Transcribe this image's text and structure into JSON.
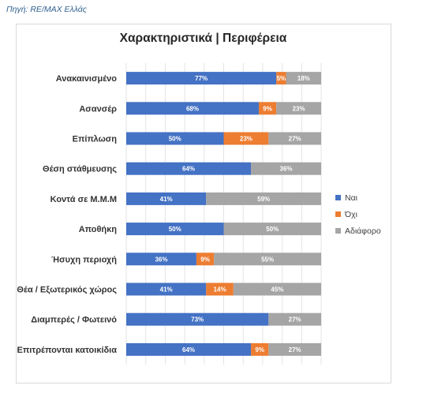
{
  "source_note": "Πηγή: RE/MAX Ελλάς",
  "chart_data": {
    "type": "bar",
    "orientation": "horizontal",
    "stacked": "percent",
    "title": "Χαρακτηριστικά | Περιφέρεια",
    "categories": [
      "Ανακαινισμένο",
      "Ασανσέρ",
      "Επίπλωση",
      "Θέση στάθμευσης",
      "Κοντά σε Μ.Μ.Μ",
      "Αποθήκη",
      "Ήσυχη περιοχή",
      "Θέα / Εξωτερικός χώρος",
      "Διαμπερές / Φωτεινό",
      "Επιτρέπονται κατοικίδια"
    ],
    "series": [
      {
        "name": "Ναι",
        "color": "#4472c4",
        "values": [
          77,
          68,
          50,
          64,
          41,
          50,
          36,
          41,
          73,
          64
        ]
      },
      {
        "name": "Όχι",
        "color": "#ed7d31",
        "values": [
          5,
          9,
          23,
          0,
          0,
          0,
          9,
          14,
          0,
          9
        ]
      },
      {
        "name": "Αδιάφορο",
        "color": "#a5a5a5",
        "values": [
          18,
          23,
          27,
          36,
          59,
          50,
          55,
          45,
          27,
          27
        ]
      }
    ],
    "value_suffix": "%",
    "xlim": [
      0,
      100
    ],
    "grid": true,
    "legend_position": "right"
  }
}
